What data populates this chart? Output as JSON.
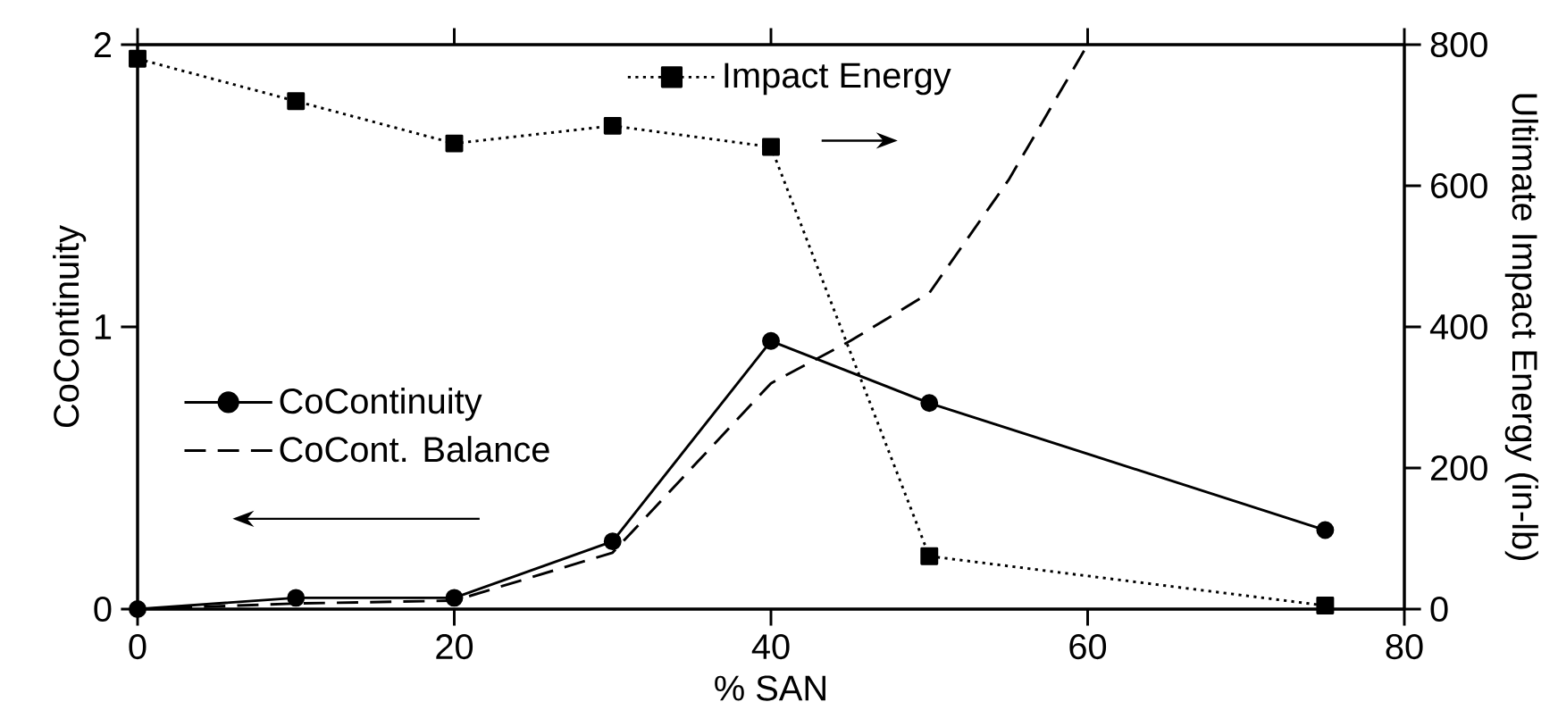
{
  "chart_data": {
    "type": "line",
    "xlabel": "% SAN",
    "ylabel": "CoContinuity",
    "y2label": "Ultimate Impact Energy (in-lb)",
    "xlim": [
      0,
      80
    ],
    "xticks": [
      0,
      20,
      40,
      60,
      80
    ],
    "ylim": [
      0,
      2
    ],
    "yticks": [
      0,
      1,
      2
    ],
    "y2lim": [
      0,
      800
    ],
    "y2ticks": [
      0,
      200,
      400,
      600,
      800
    ],
    "legend": "left",
    "series": [
      {
        "name": "CoContinuity",
        "color": "#000000",
        "marker": "circle",
        "line_style": "solid",
        "x": [
          0,
          10,
          20,
          30,
          40,
          50,
          75
        ],
        "values": [
          0,
          0.04,
          0.04,
          0.24,
          0.95,
          0.73,
          0.28
        ]
      },
      {
        "name": "CoCont. Balance",
        "color": "#000000",
        "marker": "none",
        "line_style": "dashed",
        "x": [
          0,
          10,
          20,
          30,
          40,
          45,
          50,
          55,
          60
        ],
        "values": [
          0,
          0.02,
          0.03,
          0.2,
          0.8,
          0.95,
          1.12,
          1.52,
          2.0
        ]
      },
      {
        "name": "Impact Energy",
        "color": "#000000",
        "marker": "square",
        "line_style": "dotted",
        "axis": "y2",
        "x": [
          0,
          10,
          20,
          30,
          40,
          50,
          75
        ],
        "values": [
          780,
          720,
          660,
          685,
          655,
          75,
          5
        ]
      }
    ]
  }
}
